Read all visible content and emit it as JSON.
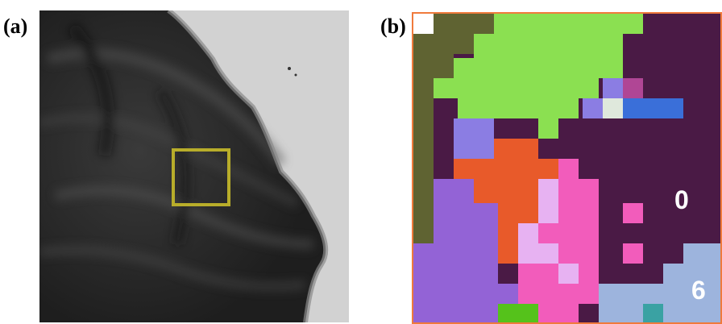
{
  "panels": {
    "a": {
      "label": "(a)"
    },
    "b": {
      "label": "(b)",
      "region_labels": {
        "r0": "0",
        "r6": "6"
      }
    }
  },
  "colors": {
    "frame_b": "#f07a3c",
    "roi_box": "#b8ad2a",
    "region_0": "#4a1a45",
    "region_6": "#9db4dd",
    "olive": "#5f6332",
    "light_green": "#8be051",
    "orange": "#e85a2a",
    "pink": "#f25cbb",
    "light_pink": "#e7b2f2",
    "purple": "#9363d6",
    "lavender": "#8b7de3",
    "blue": "#3a6fd9",
    "magenta": "#b04695",
    "green": "#55c21b",
    "teal": "#3aa2a3"
  }
}
